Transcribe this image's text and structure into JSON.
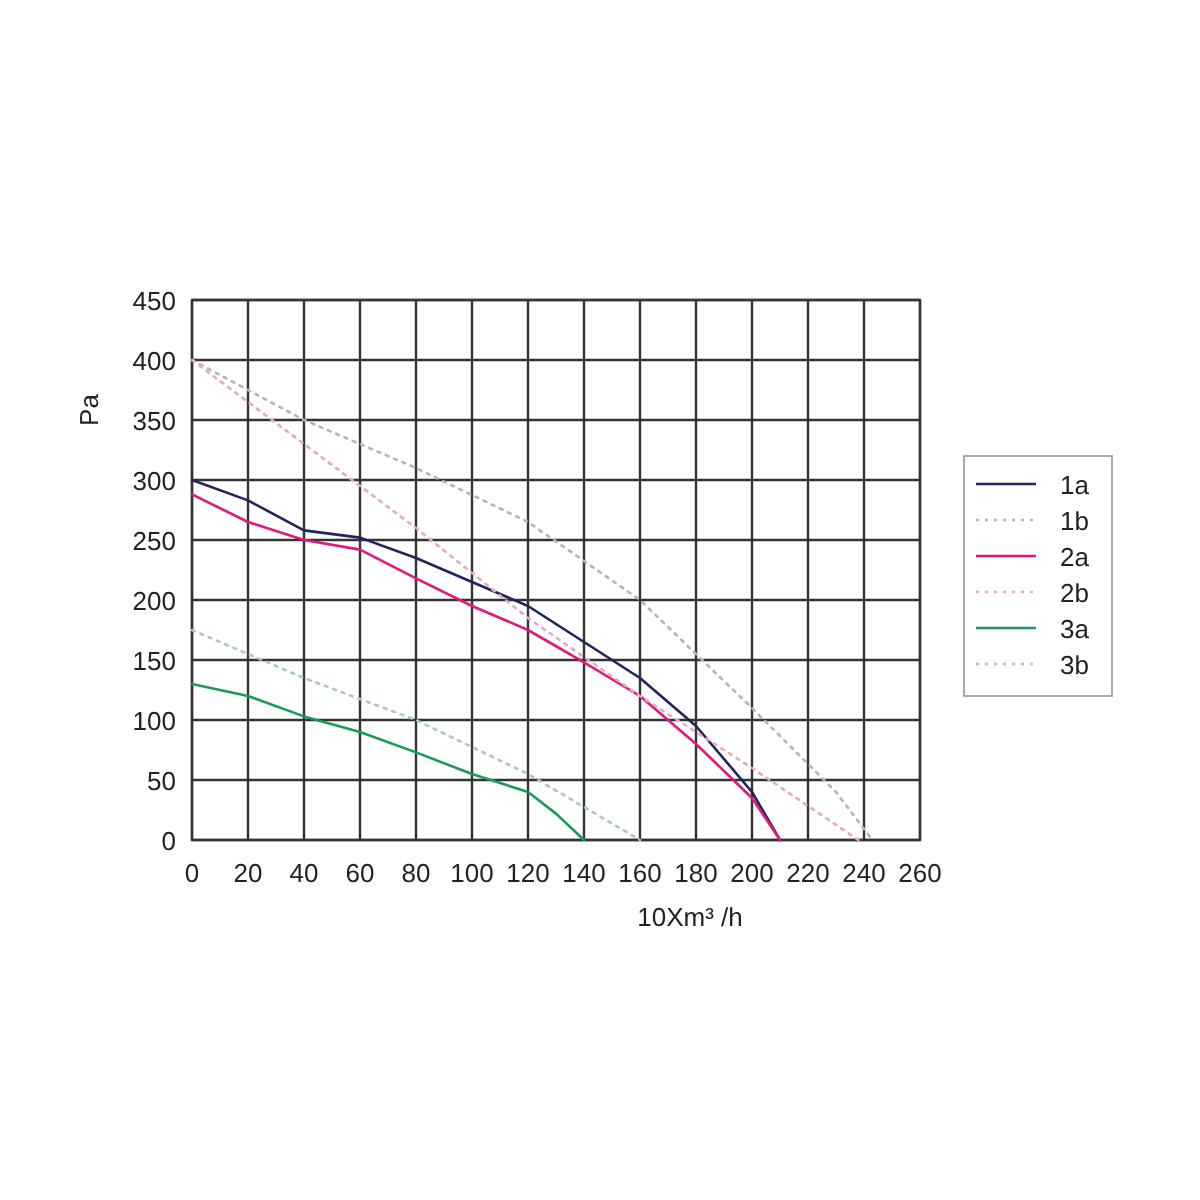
{
  "chart_data": {
    "type": "line",
    "xlabel": "10Xm³ /h",
    "ylabel": "Pa",
    "xlim": [
      0,
      260
    ],
    "ylim": [
      0,
      450
    ],
    "xticks": [
      0,
      20,
      40,
      60,
      80,
      100,
      120,
      140,
      160,
      180,
      200,
      220,
      240,
      260
    ],
    "yticks": [
      0,
      50,
      100,
      150,
      200,
      250,
      300,
      350,
      400,
      450
    ],
    "grid": true,
    "legend": "right",
    "series": [
      {
        "name": "1a",
        "color": "#23235e",
        "line_style": "solid",
        "x": [
          0,
          20,
          40,
          60,
          80,
          100,
          120,
          140,
          160,
          180,
          200,
          210
        ],
        "values": [
          300,
          283,
          258,
          252,
          235,
          215,
          195,
          165,
          135,
          95,
          40,
          0
        ]
      },
      {
        "name": "1b",
        "color": "#b4b4b4",
        "line_style": "dotted",
        "x": [
          0,
          40,
          80,
          120,
          160,
          200,
          230,
          243
        ],
        "values": [
          400,
          350,
          310,
          265,
          200,
          110,
          40,
          0
        ]
      },
      {
        "name": "2a",
        "color": "#e0197a",
        "line_style": "solid",
        "x": [
          0,
          20,
          40,
          60,
          80,
          100,
          120,
          140,
          160,
          180,
          200,
          210
        ],
        "values": [
          288,
          265,
          250,
          242,
          218,
          195,
          175,
          148,
          120,
          80,
          35,
          0
        ]
      },
      {
        "name": "2b",
        "color": "#e4a8c4",
        "line_style": "dotted",
        "x": [
          0,
          40,
          80,
          120,
          160,
          200,
          238
        ],
        "values": [
          400,
          330,
          260,
          185,
          120,
          60,
          0
        ]
      },
      {
        "name": "3a",
        "color": "#1a9a5a",
        "line_style": "solid",
        "x": [
          0,
          20,
          40,
          60,
          80,
          100,
          120,
          130,
          140
        ],
        "values": [
          130,
          120,
          103,
          90,
          73,
          55,
          40,
          22,
          0
        ]
      },
      {
        "name": "3b",
        "color": "#a8cbbd",
        "line_style": "dotted",
        "x": [
          0,
          40,
          80,
          120,
          160
        ],
        "values": [
          175,
          135,
          100,
          55,
          0
        ]
      }
    ]
  }
}
